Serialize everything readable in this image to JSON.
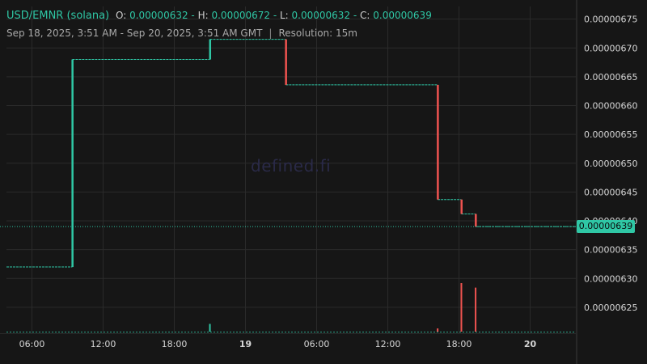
{
  "header": {
    "pair": "USD/EMNR (solana)",
    "o_label": "O:",
    "o": "0.00000632",
    "h_label": "H:",
    "h": "0.00000672",
    "l_label": "L:",
    "l": "0.00000632",
    "c_label": "C:",
    "c": "0.00000639",
    "range": "Sep 18, 2025, 3:51 AM - Sep 20, 2025, 3:51 AM GMT",
    "separator": "|",
    "resolution": "Resolution: 15m"
  },
  "watermark": "defined.fi",
  "current_price": "0.00000639",
  "colors": {
    "background": "#161616",
    "grid": "#2b2b2b",
    "up": "#2fc7a5",
    "down": "#ef5350",
    "text": "#d6d6d6"
  },
  "chart_data": {
    "type": "candlestick",
    "title": "USD/EMNR (solana)",
    "y_ticks": [
      "0.00000625",
      "0.00000630",
      "0.00000635",
      "0.00000640",
      "0.00000645",
      "0.00000650",
      "0.00000655",
      "0.00000660",
      "0.00000665",
      "0.00000670",
      "0.00000675"
    ],
    "ylim": [
      6.205e-06,
      6.772e-06
    ],
    "x_ticks": [
      {
        "label": "06:00",
        "t": 6,
        "bold": false
      },
      {
        "label": "12:00",
        "t": 12,
        "bold": false
      },
      {
        "label": "18:00",
        "t": 18,
        "bold": false
      },
      {
        "label": "19",
        "t": 24,
        "bold": true
      },
      {
        "label": "06:00",
        "t": 30,
        "bold": false
      },
      {
        "label": "12:00",
        "t": 36,
        "bold": false
      },
      {
        "label": "18:00",
        "t": 42,
        "bold": false
      },
      {
        "label": "20",
        "t": 48,
        "bold": true
      }
    ],
    "xlim": [
      3.85,
      51.85
    ],
    "price_segments": [
      {
        "t0": 3.85,
        "t1": 9.4,
        "price": 6.32e-06
      },
      {
        "t0": 9.4,
        "t1": 21.0,
        "price": 6.68e-06
      },
      {
        "t0": 21.0,
        "t1": 27.4,
        "price": 6.715e-06
      },
      {
        "t0": 27.4,
        "t1": 40.2,
        "price": 6.636e-06
      },
      {
        "t0": 40.2,
        "t1": 42.2,
        "price": 6.437e-06
      },
      {
        "t0": 42.2,
        "t1": 43.4,
        "price": 6.412e-06
      },
      {
        "t0": 43.4,
        "t1": 51.85,
        "price": 6.39e-06
      }
    ],
    "price_moves": [
      {
        "t": 9.4,
        "from": 6.32e-06,
        "to": 6.68e-06,
        "dir": "up"
      },
      {
        "t": 21.0,
        "from": 6.68e-06,
        "to": 6.715e-06,
        "dir": "up"
      },
      {
        "t": 27.4,
        "from": 6.715e-06,
        "to": 6.636e-06,
        "dir": "down"
      },
      {
        "t": 40.2,
        "from": 6.636e-06,
        "to": 6.437e-06,
        "dir": "down"
      },
      {
        "t": 42.2,
        "from": 6.437e-06,
        "to": 6.412e-06,
        "dir": "down"
      },
      {
        "t": 43.4,
        "from": 6.412e-06,
        "to": 6.39e-06,
        "dir": "down"
      }
    ],
    "volume_bars": [
      {
        "t": 21.0,
        "dir": "up",
        "rel": 0.12
      },
      {
        "t": 40.2,
        "dir": "down",
        "rel": 0.05
      },
      {
        "t": 42.2,
        "dir": "down",
        "rel": 0.75
      },
      {
        "t": 43.4,
        "dir": "down",
        "rel": 0.68
      }
    ],
    "last_price": 6.39e-06,
    "grid": true
  }
}
